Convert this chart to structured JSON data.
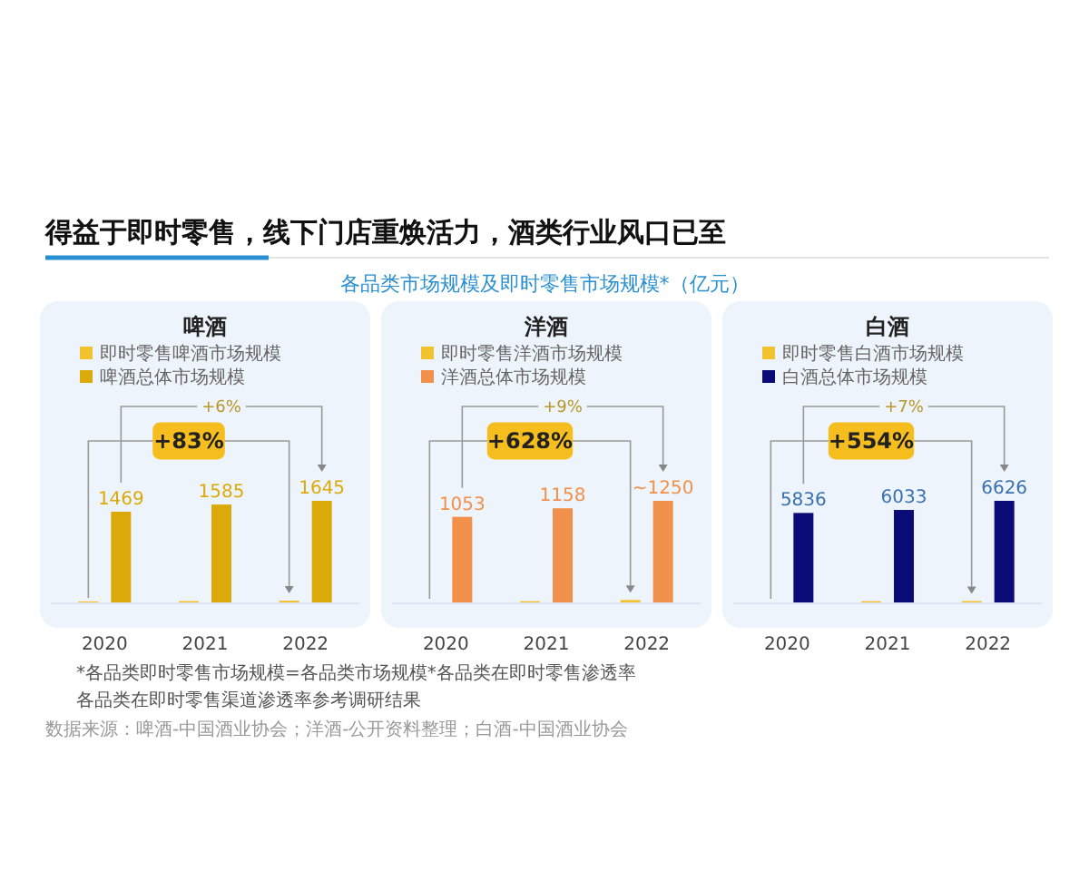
{
  "chart_data": [
    {
      "type": "bar",
      "title": "啤酒",
      "categories": [
        "2020",
        "2021",
        "2022"
      ],
      "legend": "top",
      "series": [
        {
          "name": "即时零售啤酒市场规模",
          "color": "#f2c12e",
          "values": [
            16,
            22,
            29
          ]
        },
        {
          "name": "啤酒总体市场规模",
          "color": "#dbaa0a",
          "values": [
            1469,
            1585,
            1645
          ],
          "value_labels": [
            "1469",
            "1585",
            "1645"
          ]
        }
      ],
      "annotations": [
        "+6%",
        "+83%",
        "得益于即时零售，线下门店重焕活力，酒类行业风口已至",
        "各品类市场规模及即时零售市场规模*（亿元）",
        "*各品类即时零售市场规模=各品类市场规模*各品类在即时零售渗透率",
        "各品类在即时零售渠道渗透率参考调研结果",
        "数据来源：啤酒-中国酒业协会；洋酒-公开资料整理；白酒-中国酒业协会"
      ]
    },
    {
      "type": "bar",
      "title": "洋酒",
      "categories": [
        "2020",
        "2021",
        "2022"
      ],
      "legend": "top",
      "series": [
        {
          "name": "即时零售洋酒市场规模",
          "color": "#f2c12e",
          "values": [
            null,
            15,
            30
          ]
        },
        {
          "name": "洋酒总体市场规模",
          "color": "#f0904a",
          "values": [
            1053,
            1158,
            1250
          ],
          "value_labels": [
            "1053",
            "1158",
            "~1250"
          ]
        }
      ],
      "annotations": [
        "+9%",
        "+628%"
      ]
    },
    {
      "type": "bar",
      "title": "白酒",
      "categories": [
        "2020",
        "2021",
        "2022"
      ],
      "legend": "top",
      "series": [
        {
          "name": "即时零售白酒市场规模",
          "color": "#f2c12e",
          "values": [
            null,
            80,
            90
          ]
        },
        {
          "name": "白酒总体市场规模",
          "color": "#0b0b78",
          "values": [
            5836,
            6033,
            6626
          ],
          "value_labels": [
            "5836",
            "6033",
            "6626"
          ]
        }
      ],
      "annotations": [
        "+7%",
        "+554%"
      ]
    }
  ]
}
